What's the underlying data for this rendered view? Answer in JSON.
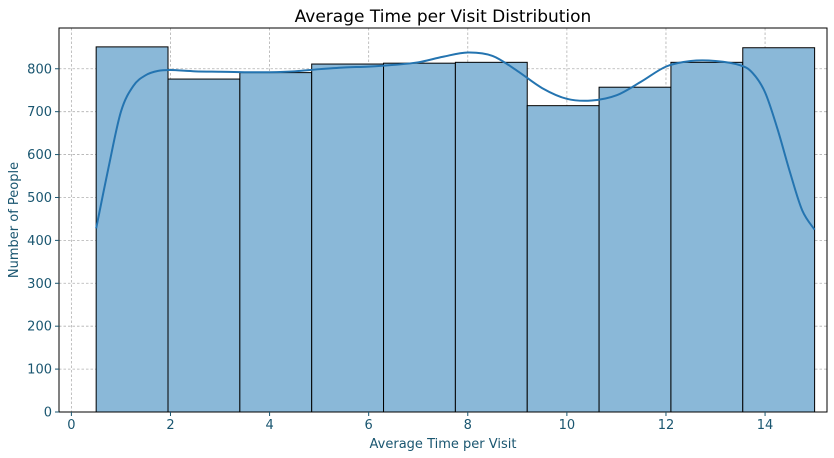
{
  "chart_data": {
    "type": "bar",
    "subtype": "histogram-with-kde",
    "title": "Average Time per Visit Distribution",
    "xlabel": "Average Time per Visit",
    "ylabel": "Number of People",
    "xlim": [
      -0.25,
      15.25
    ],
    "ylim": [
      0,
      895
    ],
    "grid": true,
    "bins": [
      {
        "x0": 0.5,
        "x1": 1.95,
        "count": 851
      },
      {
        "x0": 1.95,
        "x1": 3.4,
        "count": 776
      },
      {
        "x0": 3.4,
        "x1": 4.85,
        "count": 791
      },
      {
        "x0": 4.85,
        "x1": 6.3,
        "count": 811
      },
      {
        "x0": 6.3,
        "x1": 7.75,
        "count": 813
      },
      {
        "x0": 7.75,
        "x1": 9.2,
        "count": 815
      },
      {
        "x0": 9.2,
        "x1": 10.65,
        "count": 714
      },
      {
        "x0": 10.65,
        "x1": 12.1,
        "count": 757
      },
      {
        "x0": 12.1,
        "x1": 13.55,
        "count": 815
      },
      {
        "x0": 13.55,
        "x1": 15.0,
        "count": 849
      }
    ],
    "kde": {
      "x": [
        0.5,
        0.75,
        1.0,
        1.25,
        1.5,
        1.75,
        2.0,
        2.5,
        3.0,
        3.5,
        4.0,
        4.5,
        5.0,
        5.5,
        6.0,
        6.5,
        7.0,
        7.5,
        8.0,
        8.5,
        9.0,
        9.5,
        10.0,
        10.5,
        11.0,
        11.5,
        12.0,
        12.5,
        13.0,
        13.5,
        13.75,
        14.0,
        14.25,
        14.5,
        14.75,
        15.0
      ],
      "y": [
        428,
        570,
        700,
        760,
        785,
        795,
        797,
        794,
        793,
        792,
        792,
        794,
        799,
        803,
        805,
        809,
        815,
        828,
        838,
        830,
        795,
        755,
        730,
        726,
        738,
        770,
        805,
        818,
        818,
        808,
        790,
        745,
        660,
        560,
        470,
        425
      ]
    },
    "xticks": [
      "0",
      "2",
      "4",
      "6",
      "8",
      "10",
      "12",
      "14"
    ],
    "yticks": [
      "0",
      "100",
      "200",
      "300",
      "400",
      "500",
      "600",
      "700",
      "800"
    ]
  }
}
